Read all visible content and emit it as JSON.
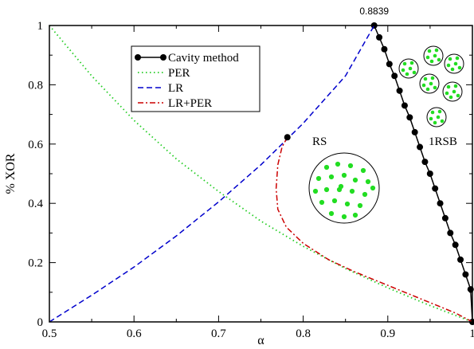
{
  "chart_data": {
    "type": "line",
    "xlabel": "α",
    "ylabel": "% XOR",
    "xlim": [
      0.5,
      1.0
    ],
    "ylim": [
      0,
      1
    ],
    "xticks": [
      "0.5",
      "0.6",
      "0.7",
      "0.8",
      "0.9",
      "1"
    ],
    "yticks": [
      "0",
      "0.2",
      "0.4",
      "0.6",
      "0.8",
      "1"
    ],
    "grid": false,
    "legend_position": "upper-left",
    "annotations": {
      "peak_label": "0.8839",
      "rs_label": "RS",
      "rsb_label": "1RSB"
    },
    "series": [
      {
        "name": "Cavity method",
        "color": "#000000",
        "style": "solid-markers",
        "x": [
          0.8839,
          0.8899,
          0.8959,
          0.9019,
          0.9079,
          0.9139,
          0.9199,
          0.9259,
          0.9319,
          0.9379,
          0.9439,
          0.9499,
          0.9559,
          0.9619,
          0.9679,
          0.9739,
          0.9799,
          0.9859,
          0.9919,
          0.9979,
          1.0
        ],
        "y": [
          1.0,
          0.96,
          0.92,
          0.87,
          0.83,
          0.78,
          0.73,
          0.69,
          0.64,
          0.59,
          0.54,
          0.5,
          0.45,
          0.4,
          0.35,
          0.3,
          0.26,
          0.21,
          0.16,
          0.11,
          0.0
        ]
      },
      {
        "name": "PER",
        "color": "#22cc22",
        "style": "dotted",
        "x": [
          0.5,
          0.55,
          0.6,
          0.65,
          0.7,
          0.75,
          0.8,
          0.85,
          0.9,
          0.95,
          1.0
        ],
        "y": [
          1.0,
          0.83,
          0.68,
          0.55,
          0.44,
          0.34,
          0.255,
          0.18,
          0.115,
          0.055,
          0.0
        ]
      },
      {
        "name": "LR",
        "color": "#0000cc",
        "style": "dashed",
        "x": [
          0.5,
          0.55,
          0.6,
          0.65,
          0.7,
          0.75,
          0.8,
          0.85,
          0.8839
        ],
        "y": [
          0.0,
          0.09,
          0.185,
          0.29,
          0.405,
          0.53,
          0.67,
          0.83,
          1.0
        ]
      },
      {
        "name": "LR+PER",
        "color": "#cc0000",
        "style": "dash-dot",
        "x": [
          0.7813,
          0.775,
          0.77,
          0.768,
          0.77,
          0.78,
          0.8,
          0.83,
          0.86,
          0.89,
          0.92,
          0.95,
          0.98,
          1.0
        ],
        "y": [
          0.623,
          0.59,
          0.53,
          0.45,
          0.38,
          0.32,
          0.265,
          0.21,
          0.17,
          0.135,
          0.1,
          0.065,
          0.03,
          0.0
        ]
      }
    ],
    "markers": [
      {
        "x": 0.7813,
        "y": 0.623,
        "color": "#000000"
      }
    ]
  }
}
